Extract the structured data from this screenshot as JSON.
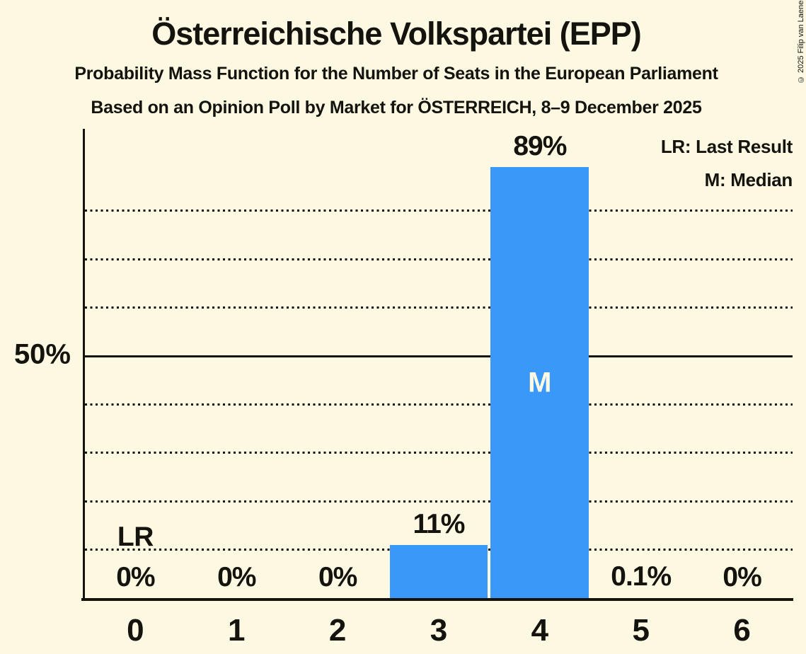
{
  "copyright": "© 2025 Filip van Laenen",
  "legend": {
    "last_result": "LR: Last Result",
    "median": "M: Median"
  },
  "colors": {
    "background": "#FCF8E2",
    "bar": "#3A98F8",
    "text": "#14130E",
    "bar_text": "#FCF8E2"
  },
  "chart_data": {
    "type": "bar",
    "title": "Österreichische Volkspartei (EPP)",
    "subtitle": "Probability Mass Function for the Number of Seats in the European Parliament",
    "source_line": "Based on an Opinion Poll by Market for ÖSTERREICH, 8–9 December 2025",
    "categories": [
      "0",
      "1",
      "2",
      "3",
      "4",
      "5",
      "6"
    ],
    "values": [
      0,
      0,
      0,
      11,
      89,
      0.1,
      0
    ],
    "value_labels": [
      "0%",
      "0%",
      "0%",
      "11%",
      "89%",
      "0.1%",
      "0%"
    ],
    "ylim": [
      0,
      97
    ],
    "y_tick_label": "50%",
    "y_tick_pct": 50,
    "dotted_gridlines_pct": [
      10,
      20,
      30,
      40,
      60,
      70,
      80
    ],
    "solid_gridline_pct": 50,
    "grid": "horizontal-dotted",
    "legend_position": "top-right",
    "median": {
      "category": "4",
      "label": "M"
    },
    "last_result": {
      "category": "0",
      "label": "LR"
    }
  }
}
